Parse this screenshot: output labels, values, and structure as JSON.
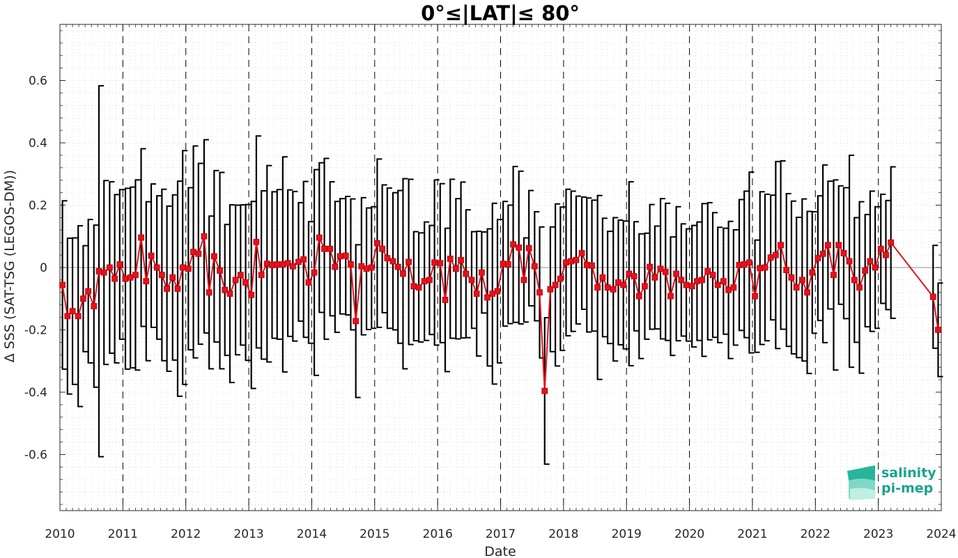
{
  "chart_data": {
    "type": "line",
    "title": "0°≤|LAT|≤ 80°",
    "xlabel": "Date",
    "ylabel": "Δ SSS (SAT-TSG (LEGOS-DM))",
    "xlim": [
      2010,
      2024
    ],
    "ylim": [
      -0.78,
      0.78
    ],
    "x_ticks": [
      "2010",
      "2011",
      "2012",
      "2013",
      "2014",
      "2015",
      "2016",
      "2017",
      "2018",
      "2019",
      "2020",
      "2021",
      "2022",
      "2023",
      "2024"
    ],
    "y_ticks": [
      "-0.6",
      "-0.4",
      "-0.2",
      "0",
      "0.2",
      "0.4",
      "0.6"
    ],
    "y_tick_values": [
      -0.6,
      -0.4,
      -0.2,
      0,
      0.2,
      0.4,
      0.6
    ],
    "grid": "minor dotted",
    "year_separators": "dashed vertical lines",
    "series": [
      {
        "color": "#e8101a",
        "marker": "square",
        "errorbar_color": "#000000",
        "points": [
          {
            "x": 2010.04,
            "y": -0.056,
            "err": 0.27
          },
          {
            "x": 2010.12,
            "y": -0.156,
            "err": 0.25
          },
          {
            "x": 2010.2,
            "y": -0.14,
            "err": 0.235
          },
          {
            "x": 2010.29,
            "y": -0.156,
            "err": 0.29
          },
          {
            "x": 2010.37,
            "y": -0.1,
            "err": 0.17
          },
          {
            "x": 2010.45,
            "y": -0.076,
            "err": 0.23
          },
          {
            "x": 2010.54,
            "y": -0.124,
            "err": 0.26
          },
          {
            "x": 2010.62,
            "y": -0.012,
            "err": 0.595
          },
          {
            "x": 2010.7,
            "y": -0.016,
            "err": 0.295
          },
          {
            "x": 2010.79,
            "y": 0.0,
            "err": 0.275
          },
          {
            "x": 2010.87,
            "y": -0.036,
            "err": 0.27
          },
          {
            "x": 2010.95,
            "y": 0.01,
            "err": 0.24
          },
          {
            "x": 2011.04,
            "y": -0.036,
            "err": 0.29
          },
          {
            "x": 2011.12,
            "y": -0.032,
            "err": 0.29
          },
          {
            "x": 2011.2,
            "y": -0.024,
            "err": 0.305
          },
          {
            "x": 2011.29,
            "y": 0.096,
            "err": 0.285
          },
          {
            "x": 2011.37,
            "y": -0.044,
            "err": 0.255
          },
          {
            "x": 2011.45,
            "y": 0.038,
            "err": 0.23
          },
          {
            "x": 2011.54,
            "y": 0.0,
            "err": 0.23
          },
          {
            "x": 2011.62,
            "y": -0.024,
            "err": 0.275
          },
          {
            "x": 2011.7,
            "y": -0.068,
            "err": 0.265
          },
          {
            "x": 2011.79,
            "y": -0.032,
            "err": 0.265
          },
          {
            "x": 2011.87,
            "y": -0.068,
            "err": 0.345
          },
          {
            "x": 2011.95,
            "y": 0.0,
            "err": 0.375
          },
          {
            "x": 2012.04,
            "y": -0.004,
            "err": 0.26
          },
          {
            "x": 2012.12,
            "y": 0.05,
            "err": 0.34
          },
          {
            "x": 2012.2,
            "y": 0.044,
            "err": 0.29
          },
          {
            "x": 2012.29,
            "y": 0.1,
            "err": 0.31
          },
          {
            "x": 2012.37,
            "y": -0.08,
            "err": 0.245
          },
          {
            "x": 2012.45,
            "y": 0.036,
            "err": 0.275
          },
          {
            "x": 2012.54,
            "y": -0.01,
            "err": 0.315
          },
          {
            "x": 2012.62,
            "y": -0.072,
            "err": 0.21
          },
          {
            "x": 2012.7,
            "y": -0.084,
            "err": 0.285
          },
          {
            "x": 2012.79,
            "y": -0.04,
            "err": 0.24
          },
          {
            "x": 2012.87,
            "y": -0.024,
            "err": 0.225
          },
          {
            "x": 2012.95,
            "y": -0.048,
            "err": 0.25
          },
          {
            "x": 2013.04,
            "y": -0.088,
            "err": 0.3
          },
          {
            "x": 2013.12,
            "y": 0.082,
            "err": 0.34
          },
          {
            "x": 2013.2,
            "y": -0.024,
            "err": 0.27
          },
          {
            "x": 2013.29,
            "y": 0.012,
            "err": 0.315
          },
          {
            "x": 2013.37,
            "y": 0.008,
            "err": 0.235
          },
          {
            "x": 2013.45,
            "y": 0.01,
            "err": 0.24
          },
          {
            "x": 2013.54,
            "y": 0.01,
            "err": 0.345
          },
          {
            "x": 2013.62,
            "y": 0.014,
            "err": 0.235
          },
          {
            "x": 2013.7,
            "y": 0.004,
            "err": 0.24
          },
          {
            "x": 2013.79,
            "y": 0.018,
            "err": 0.19
          },
          {
            "x": 2013.87,
            "y": 0.026,
            "err": 0.25
          },
          {
            "x": 2013.95,
            "y": -0.048,
            "err": 0.195
          },
          {
            "x": 2014.04,
            "y": -0.016,
            "err": 0.33
          },
          {
            "x": 2014.12,
            "y": 0.096,
            "err": 0.24
          },
          {
            "x": 2014.2,
            "y": 0.06,
            "err": 0.29
          },
          {
            "x": 2014.29,
            "y": 0.06,
            "err": 0.215
          },
          {
            "x": 2014.37,
            "y": 0.002,
            "err": 0.21
          },
          {
            "x": 2014.45,
            "y": 0.036,
            "err": 0.185
          },
          {
            "x": 2014.54,
            "y": 0.038,
            "err": 0.19
          },
          {
            "x": 2014.62,
            "y": 0.01,
            "err": 0.21
          },
          {
            "x": 2014.7,
            "y": -0.172,
            "err": 0.245
          },
          {
            "x": 2014.79,
            "y": 0.004,
            "err": 0.22
          },
          {
            "x": 2014.87,
            "y": -0.004,
            "err": 0.195
          },
          {
            "x": 2014.95,
            "y": 0.0,
            "err": 0.195
          },
          {
            "x": 2015.04,
            "y": 0.078,
            "err": 0.27
          },
          {
            "x": 2015.12,
            "y": 0.06,
            "err": 0.205
          },
          {
            "x": 2015.2,
            "y": 0.03,
            "err": 0.225
          },
          {
            "x": 2015.29,
            "y": 0.02,
            "err": 0.22
          },
          {
            "x": 2015.37,
            "y": 0.002,
            "err": 0.245
          },
          {
            "x": 2015.45,
            "y": -0.02,
            "err": 0.305
          },
          {
            "x": 2015.54,
            "y": 0.018,
            "err": 0.265
          },
          {
            "x": 2015.62,
            "y": -0.06,
            "err": 0.175
          },
          {
            "x": 2015.7,
            "y": -0.064,
            "err": 0.175
          },
          {
            "x": 2015.79,
            "y": -0.044,
            "err": 0.19
          },
          {
            "x": 2015.87,
            "y": -0.04,
            "err": 0.175
          },
          {
            "x": 2015.95,
            "y": 0.016,
            "err": 0.265
          },
          {
            "x": 2016.04,
            "y": 0.014,
            "err": 0.255
          },
          {
            "x": 2016.12,
            "y": -0.104,
            "err": 0.23
          },
          {
            "x": 2016.2,
            "y": 0.028,
            "err": 0.255
          },
          {
            "x": 2016.29,
            "y": -0.004,
            "err": 0.225
          },
          {
            "x": 2016.37,
            "y": 0.024,
            "err": 0.25
          },
          {
            "x": 2016.45,
            "y": -0.02,
            "err": 0.205
          },
          {
            "x": 2016.54,
            "y": -0.04,
            "err": 0.155
          },
          {
            "x": 2016.62,
            "y": -0.084,
            "err": 0.2
          },
          {
            "x": 2016.7,
            "y": -0.016,
            "err": 0.13
          },
          {
            "x": 2016.79,
            "y": -0.096,
            "err": 0.22
          },
          {
            "x": 2016.87,
            "y": -0.084,
            "err": 0.29
          },
          {
            "x": 2016.95,
            "y": -0.076,
            "err": 0.23
          },
          {
            "x": 2017.04,
            "y": 0.012,
            "err": 0.2
          },
          {
            "x": 2017.12,
            "y": 0.01,
            "err": 0.19
          },
          {
            "x": 2017.2,
            "y": 0.074,
            "err": 0.25
          },
          {
            "x": 2017.29,
            "y": 0.064,
            "err": 0.245
          },
          {
            "x": 2017.37,
            "y": -0.04,
            "err": 0.135
          },
          {
            "x": 2017.45,
            "y": 0.062,
            "err": 0.185
          },
          {
            "x": 2017.54,
            "y": 0.004,
            "err": 0.175
          },
          {
            "x": 2017.62,
            "y": -0.08,
            "err": 0.21
          },
          {
            "x": 2017.7,
            "y": -0.396,
            "err": 0.235
          },
          {
            "x": 2017.79,
            "y": -0.07,
            "err": 0.2
          },
          {
            "x": 2017.87,
            "y": -0.056,
            "err": 0.26
          },
          {
            "x": 2017.95,
            "y": -0.036,
            "err": 0.23
          },
          {
            "x": 2018.04,
            "y": 0.016,
            "err": 0.235
          },
          {
            "x": 2018.12,
            "y": 0.02,
            "err": 0.225
          },
          {
            "x": 2018.2,
            "y": 0.024,
            "err": 0.205
          },
          {
            "x": 2018.29,
            "y": 0.046,
            "err": 0.18
          },
          {
            "x": 2018.37,
            "y": 0.008,
            "err": 0.215
          },
          {
            "x": 2018.45,
            "y": 0.006,
            "err": 0.21
          },
          {
            "x": 2018.54,
            "y": -0.064,
            "err": 0.295
          },
          {
            "x": 2018.62,
            "y": -0.032,
            "err": 0.19
          },
          {
            "x": 2018.7,
            "y": -0.064,
            "err": 0.18
          },
          {
            "x": 2018.79,
            "y": -0.07,
            "err": 0.23
          },
          {
            "x": 2018.87,
            "y": -0.048,
            "err": 0.2
          },
          {
            "x": 2018.95,
            "y": -0.056,
            "err": 0.205
          },
          {
            "x": 2019.04,
            "y": -0.02,
            "err": 0.295
          },
          {
            "x": 2019.12,
            "y": -0.028,
            "err": 0.175
          },
          {
            "x": 2019.2,
            "y": -0.092,
            "err": 0.2
          },
          {
            "x": 2019.29,
            "y": -0.06,
            "err": 0.17
          },
          {
            "x": 2019.37,
            "y": 0.002,
            "err": 0.2
          },
          {
            "x": 2019.45,
            "y": -0.032,
            "err": 0.165
          },
          {
            "x": 2019.54,
            "y": -0.004,
            "err": 0.225
          },
          {
            "x": 2019.62,
            "y": -0.014,
            "err": 0.22
          },
          {
            "x": 2019.7,
            "y": -0.092,
            "err": 0.19
          },
          {
            "x": 2019.79,
            "y": -0.02,
            "err": 0.215
          },
          {
            "x": 2019.87,
            "y": -0.04,
            "err": 0.18
          },
          {
            "x": 2019.95,
            "y": -0.056,
            "err": 0.18
          },
          {
            "x": 2020.04,
            "y": -0.06,
            "err": 0.195
          },
          {
            "x": 2020.12,
            "y": -0.044,
            "err": 0.19
          },
          {
            "x": 2020.2,
            "y": -0.04,
            "err": 0.245
          },
          {
            "x": 2020.29,
            "y": -0.012,
            "err": 0.22
          },
          {
            "x": 2020.37,
            "y": -0.024,
            "err": 0.2
          },
          {
            "x": 2020.45,
            "y": -0.056,
            "err": 0.185
          },
          {
            "x": 2020.54,
            "y": -0.044,
            "err": 0.17
          },
          {
            "x": 2020.62,
            "y": -0.072,
            "err": 0.22
          },
          {
            "x": 2020.7,
            "y": -0.064,
            "err": 0.185
          },
          {
            "x": 2020.79,
            "y": 0.008,
            "err": 0.21
          },
          {
            "x": 2020.87,
            "y": 0.01,
            "err": 0.235
          },
          {
            "x": 2020.95,
            "y": 0.016,
            "err": 0.29
          },
          {
            "x": 2021.04,
            "y": -0.092,
            "err": 0.18
          },
          {
            "x": 2021.12,
            "y": -0.002,
            "err": 0.245
          },
          {
            "x": 2021.2,
            "y": 0.0,
            "err": 0.235
          },
          {
            "x": 2021.29,
            "y": 0.032,
            "err": 0.2
          },
          {
            "x": 2021.37,
            "y": 0.04,
            "err": 0.3
          },
          {
            "x": 2021.45,
            "y": 0.072,
            "err": 0.27
          },
          {
            "x": 2021.54,
            "y": -0.008,
            "err": 0.245
          },
          {
            "x": 2021.62,
            "y": -0.032,
            "err": 0.245
          },
          {
            "x": 2021.7,
            "y": -0.064,
            "err": 0.225
          },
          {
            "x": 2021.79,
            "y": -0.04,
            "err": 0.26
          },
          {
            "x": 2021.87,
            "y": -0.08,
            "err": 0.26
          },
          {
            "x": 2021.95,
            "y": -0.016,
            "err": 0.195
          },
          {
            "x": 2022.04,
            "y": 0.03,
            "err": 0.2
          },
          {
            "x": 2022.12,
            "y": 0.044,
            "err": 0.285
          },
          {
            "x": 2022.2,
            "y": 0.072,
            "err": 0.205
          },
          {
            "x": 2022.29,
            "y": -0.024,
            "err": 0.305
          },
          {
            "x": 2022.37,
            "y": 0.072,
            "err": 0.19
          },
          {
            "x": 2022.45,
            "y": 0.046,
            "err": 0.21
          },
          {
            "x": 2022.54,
            "y": 0.02,
            "err": 0.34
          },
          {
            "x": 2022.62,
            "y": -0.04,
            "err": 0.2
          },
          {
            "x": 2022.7,
            "y": -0.064,
            "err": 0.275
          },
          {
            "x": 2022.79,
            "y": -0.01,
            "err": 0.18
          },
          {
            "x": 2022.87,
            "y": 0.02,
            "err": 0.225
          },
          {
            "x": 2022.95,
            "y": 0.0,
            "err": 0.195
          },
          {
            "x": 2023.04,
            "y": 0.06,
            "err": 0.175
          },
          {
            "x": 2023.12,
            "y": 0.04,
            "err": 0.175
          },
          {
            "x": 2023.2,
            "y": 0.08,
            "err": 0.243
          },
          {
            "x": 2023.87,
            "y": -0.094,
            "err": 0.165
          },
          {
            "x": 2023.95,
            "y": -0.2,
            "err": 0.15
          }
        ]
      }
    ]
  },
  "logo": {
    "line1": "salinity",
    "line2": "pi-mep"
  },
  "colors": {
    "series": "#e8101a",
    "errorbar": "#000000",
    "axis": "#262626",
    "grid": "#bfbfbf",
    "logo": "#1aa38c"
  }
}
